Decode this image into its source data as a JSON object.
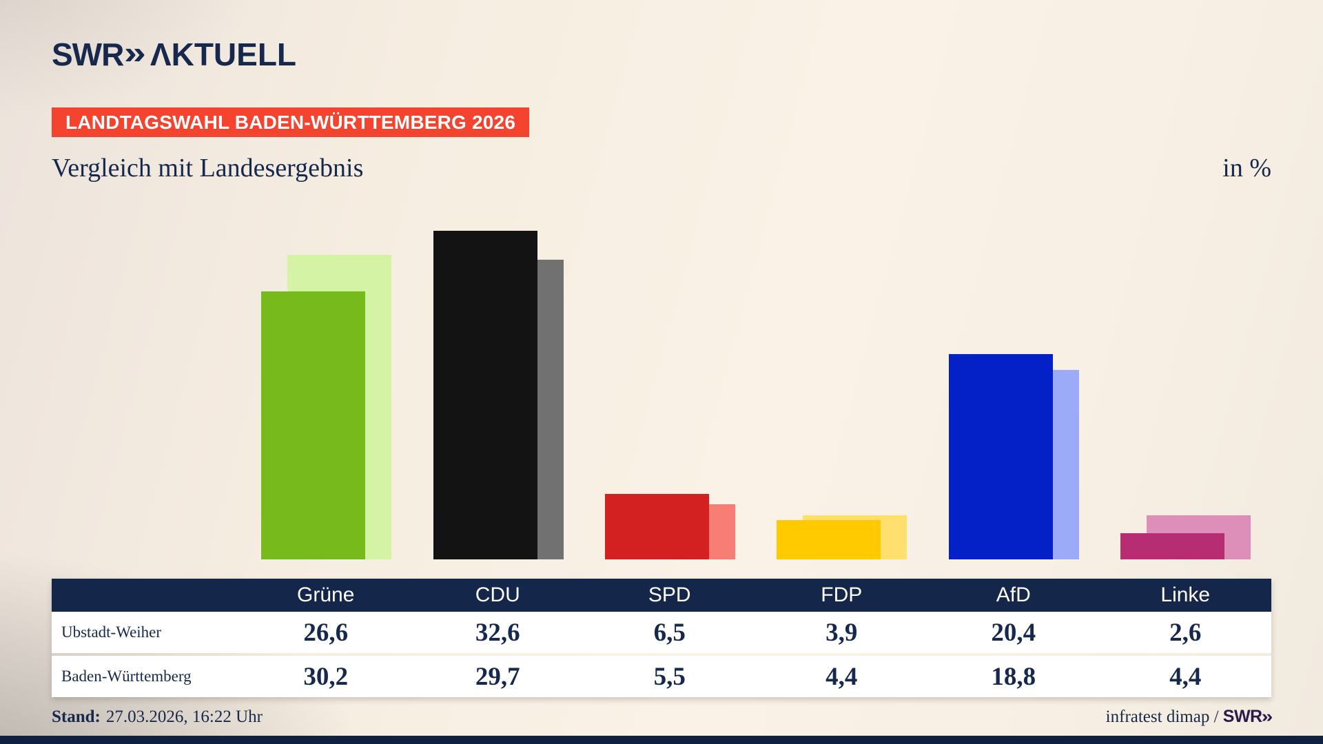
{
  "header": {
    "logo_swr": "SWR",
    "logo_chevrons": "»",
    "logo_aktuell": "ΛKTUELL",
    "badge": "LANDTAGSWAHL BADEN-WÜRTTEMBERG 2026",
    "title": "Vergleich mit Landesergebnis",
    "unit_label": "in %"
  },
  "chart_data": {
    "type": "bar",
    "title": "Vergleich mit Landesergebnis",
    "unit": "in %",
    "categories": [
      "Grüne",
      "CDU",
      "SPD",
      "FDP",
      "AfD",
      "Linke"
    ],
    "series": [
      {
        "name": "Ubstadt-Weiher",
        "values": [
          26.6,
          32.6,
          6.5,
          3.9,
          20.4,
          2.6
        ]
      },
      {
        "name": "Baden-Württemberg",
        "values": [
          30.2,
          29.7,
          5.5,
          4.4,
          18.8,
          4.4
        ]
      }
    ],
    "colors": {
      "foreground": [
        "#76ba1b",
        "#131313",
        "#d32121",
        "#ffcb00",
        "#0421c8",
        "#b62d73"
      ],
      "background": [
        "#d4f3a4",
        "#717171",
        "#f87d74",
        "#ffdf6e",
        "#9babf7",
        "#dd8fba"
      ]
    },
    "ylim": [
      0,
      34
    ],
    "grid": false,
    "legend_position": "table-below"
  },
  "table": {
    "columns": [
      "Grüne",
      "CDU",
      "SPD",
      "FDP",
      "AfD",
      "Linke"
    ],
    "rows": [
      {
        "label": "Ubstadt-Weiher",
        "values": [
          "26,6",
          "32,6",
          "6,5",
          "3,9",
          "20,4",
          "2,6"
        ]
      },
      {
        "label": "Baden-Württemberg",
        "values": [
          "30,2",
          "29,7",
          "5,5",
          "4,4",
          "18,8",
          "4,4"
        ]
      }
    ]
  },
  "footer": {
    "stand_label": "Stand:",
    "stand_value": "27.03.2026, 16:22 Uhr",
    "source": "infratest dimap / ",
    "source_brand": "SWR",
    "source_chevrons": "»"
  }
}
